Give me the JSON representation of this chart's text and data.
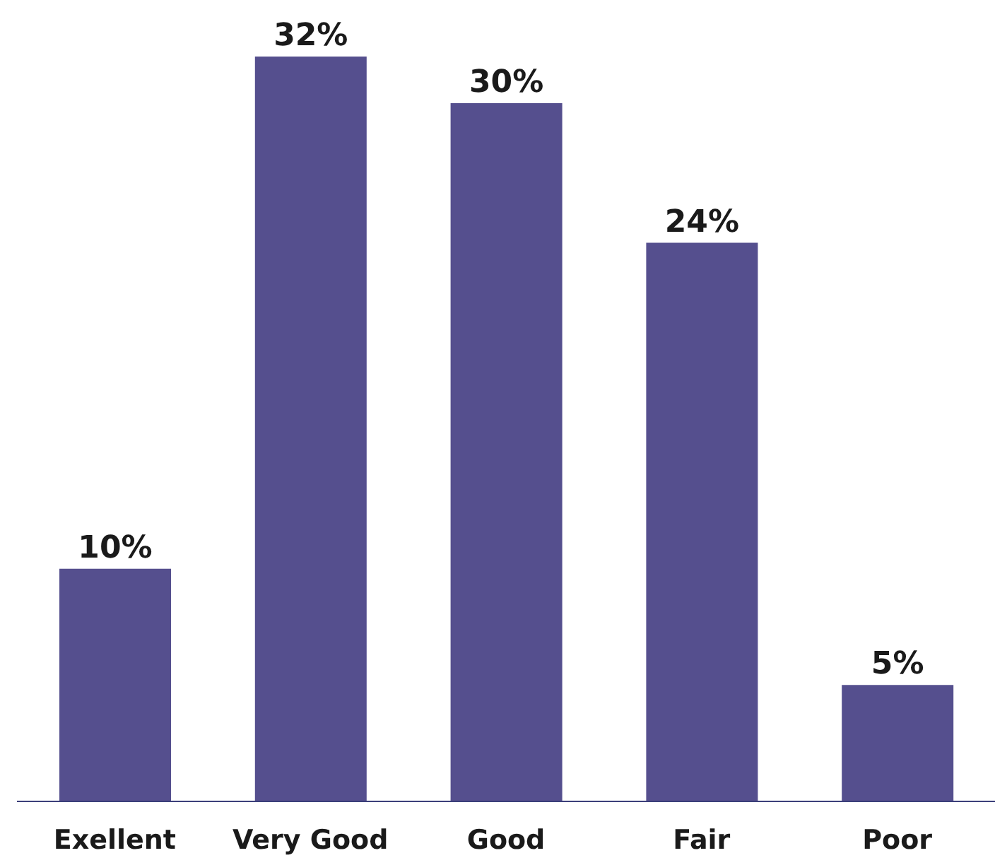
{
  "chart_data": {
    "type": "bar",
    "categories": [
      "Exellent",
      "Very Good",
      "Good",
      "Fair",
      "Poor"
    ],
    "values": [
      10,
      32,
      30,
      24,
      5
    ],
    "value_labels": [
      "10%",
      "32%",
      "30%",
      "24%",
      "5%"
    ],
    "color": "#554f8e"
  }
}
